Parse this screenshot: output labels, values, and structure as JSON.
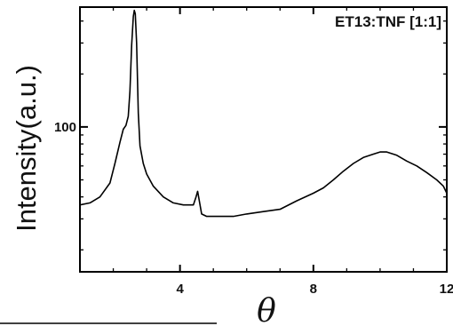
{
  "chart_data": {
    "type": "line",
    "legend_text": "ET13:TNF [1:1]",
    "legend_position": "top-right",
    "xlabel": "θ",
    "ylabel": "Intensity(a.u.)",
    "x_range": [
      1.0,
      12.0
    ],
    "y_range": [
      15,
      480
    ],
    "x_ticks": [
      {
        "value": 4,
        "label": "4"
      },
      {
        "value": 8,
        "label": "8"
      },
      {
        "value": 12,
        "label": "12"
      }
    ],
    "y_ticks": [
      {
        "value": 100,
        "label": "100"
      }
    ],
    "grid": false,
    "series": [
      {
        "color": "#000000",
        "points": [
          [
            1.0,
            36
          ],
          [
            1.3,
            37
          ],
          [
            1.6,
            40
          ],
          [
            1.9,
            48
          ],
          [
            2.05,
            62
          ],
          [
            2.2,
            82
          ],
          [
            2.3,
            97
          ],
          [
            2.38,
            102
          ],
          [
            2.45,
            115
          ],
          [
            2.5,
            160
          ],
          [
            2.55,
            290
          ],
          [
            2.6,
            425
          ],
          [
            2.63,
            460
          ],
          [
            2.66,
            440
          ],
          [
            2.7,
            300
          ],
          [
            2.75,
            120
          ],
          [
            2.8,
            78
          ],
          [
            2.9,
            62
          ],
          [
            3.0,
            54
          ],
          [
            3.2,
            46
          ],
          [
            3.5,
            40
          ],
          [
            3.8,
            37
          ],
          [
            4.1,
            36
          ],
          [
            4.4,
            36
          ],
          [
            4.48,
            40
          ],
          [
            4.53,
            43
          ],
          [
            4.58,
            38
          ],
          [
            4.65,
            32
          ],
          [
            4.8,
            31
          ],
          [
            5.2,
            31
          ],
          [
            5.6,
            31
          ],
          [
            6.0,
            32
          ],
          [
            6.5,
            33
          ],
          [
            7.0,
            34
          ],
          [
            7.5,
            38
          ],
          [
            8.0,
            42
          ],
          [
            8.3,
            45
          ],
          [
            8.6,
            50
          ],
          [
            8.9,
            56
          ],
          [
            9.2,
            62
          ],
          [
            9.5,
            67
          ],
          [
            9.8,
            70
          ],
          [
            10.0,
            72
          ],
          [
            10.2,
            72
          ],
          [
            10.5,
            69
          ],
          [
            10.8,
            64
          ],
          [
            11.1,
            60
          ],
          [
            11.4,
            55
          ],
          [
            11.7,
            50
          ],
          [
            11.9,
            46
          ],
          [
            12.0,
            42
          ]
        ]
      }
    ]
  }
}
